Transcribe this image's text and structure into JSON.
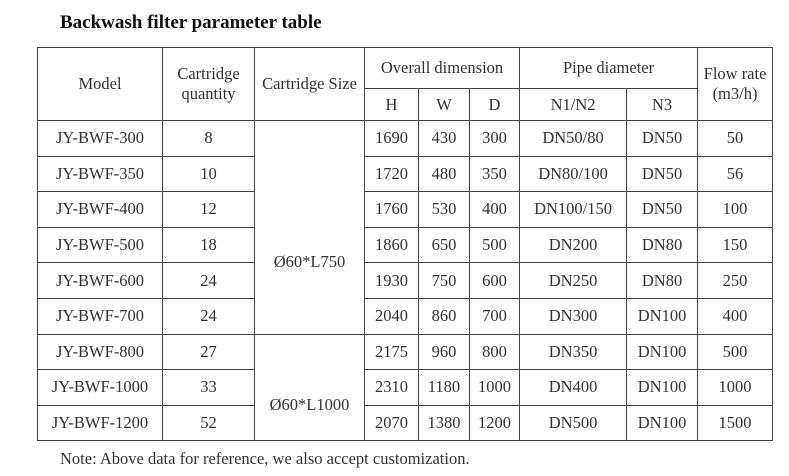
{
  "title": "Backwash filter parameter table",
  "headers": {
    "model": "Model",
    "cartridge_quantity": "Cartridge quantity",
    "cartridge_size": "Cartridge Size",
    "overall_dimension": "Overall dimension",
    "h": "H",
    "w": "W",
    "d": "D",
    "pipe_diameter": "Pipe diameter",
    "n1n2": "N1/N2",
    "n3": "N3",
    "flow_rate": "Flow rate (m3/h)"
  },
  "cartridge_sizes": [
    "Ø60*L750",
    "Ø60*L1000"
  ],
  "rows": [
    {
      "model": "JY-BWF-300",
      "qty": "8",
      "h": "1690",
      "w": "430",
      "d": "300",
      "n1n2": "DN50/80",
      "n3": "DN50",
      "flow": "50"
    },
    {
      "model": "JY-BWF-350",
      "qty": "10",
      "h": "1720",
      "w": "480",
      "d": "350",
      "n1n2": "DN80/100",
      "n3": "DN50",
      "flow": "56"
    },
    {
      "model": "JY-BWF-400",
      "qty": "12",
      "h": "1760",
      "w": "530",
      "d": "400",
      "n1n2": "DN100/150",
      "n3": "DN50",
      "flow": "100"
    },
    {
      "model": "JY-BWF-500",
      "qty": "18",
      "h": "1860",
      "w": "650",
      "d": "500",
      "n1n2": "DN200",
      "n3": "DN80",
      "flow": "150"
    },
    {
      "model": "JY-BWF-600",
      "qty": "24",
      "h": "1930",
      "w": "750",
      "d": "600",
      "n1n2": "DN250",
      "n3": "DN80",
      "flow": "250"
    },
    {
      "model": "JY-BWF-700",
      "qty": "24",
      "h": "2040",
      "w": "860",
      "d": "700",
      "n1n2": "DN300",
      "n3": "DN100",
      "flow": "400"
    },
    {
      "model": "JY-BWF-800",
      "qty": "27",
      "h": "2175",
      "w": "960",
      "d": "800",
      "n1n2": "DN350",
      "n3": "DN100",
      "flow": "500"
    },
    {
      "model": "JY-BWF-1000",
      "qty": "33",
      "h": "2310",
      "w": "1180",
      "d": "1000",
      "n1n2": "DN400",
      "n3": "DN100",
      "flow": "1000"
    },
    {
      "model": "JY-BWF-1200",
      "qty": "52",
      "h": "2070",
      "w": "1380",
      "d": "1200",
      "n1n2": "DN500",
      "n3": "DN100",
      "flow": "1500"
    }
  ],
  "note": "Note: Above data for reference, we also accept customization."
}
